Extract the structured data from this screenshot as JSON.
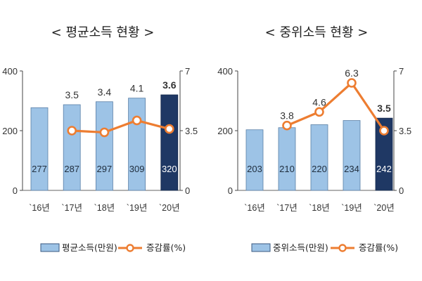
{
  "chart_data": [
    {
      "type": "bar",
      "title": "< 평균소득  현황 >",
      "categories": [
        "`16년",
        "`17년",
        "`18년",
        "`19년",
        "`20년"
      ],
      "series": [
        {
          "name": "평균소득(만원)",
          "values": [
            277,
            287,
            297,
            309,
            320
          ],
          "axis": "left",
          "color": "#9dc3e6",
          "highlight_last_color": "#1f3864"
        },
        {
          "name": "증감률(%)",
          "type": "line",
          "values": [
            null,
            3.5,
            3.4,
            4.1,
            3.6
          ],
          "axis": "right",
          "color": "#ed7d31"
        }
      ],
      "bar_labels": [
        "277",
        "287",
        "297",
        "309",
        "320"
      ],
      "rate_labels": [
        "",
        "3.5",
        "3.4",
        "4.1",
        "3.6"
      ],
      "left_axis": {
        "ylim": [
          0,
          400
        ],
        "ticks": [
          "0",
          "200",
          "400"
        ]
      },
      "right_axis": {
        "ylim": [
          0,
          7
        ],
        "ticks": [
          "0",
          "3.5",
          "7"
        ]
      },
      "legend": {
        "position": "bottom",
        "items": [
          "평균소득(만원)",
          "증감률(%)"
        ]
      }
    },
    {
      "type": "bar",
      "title": "< 중위소득  현황 >",
      "categories": [
        "`16년",
        "`17년",
        "`18년",
        "`19년",
        "`20년"
      ],
      "series": [
        {
          "name": "중위소득(만원)",
          "values": [
            203,
            210,
            220,
            234,
            242
          ],
          "axis": "left",
          "color": "#9dc3e6",
          "highlight_last_color": "#1f3864"
        },
        {
          "name": "증감률(%)",
          "type": "line",
          "values": [
            null,
            3.8,
            4.6,
            6.3,
            3.5
          ],
          "axis": "right",
          "color": "#ed7d31"
        }
      ],
      "bar_labels": [
        "203",
        "210",
        "220",
        "234",
        "242"
      ],
      "rate_labels": [
        "",
        "3.8",
        "4.6",
        "6.3",
        "3.5"
      ],
      "left_axis": {
        "ylim": [
          0,
          400
        ],
        "ticks": [
          "0",
          "200",
          "400"
        ]
      },
      "right_axis": {
        "ylim": [
          0,
          7
        ],
        "ticks": [
          "0",
          "3.5",
          "7"
        ]
      },
      "legend": {
        "position": "bottom",
        "items": [
          "중위소득(만원)",
          "증감률(%)"
        ]
      }
    }
  ]
}
